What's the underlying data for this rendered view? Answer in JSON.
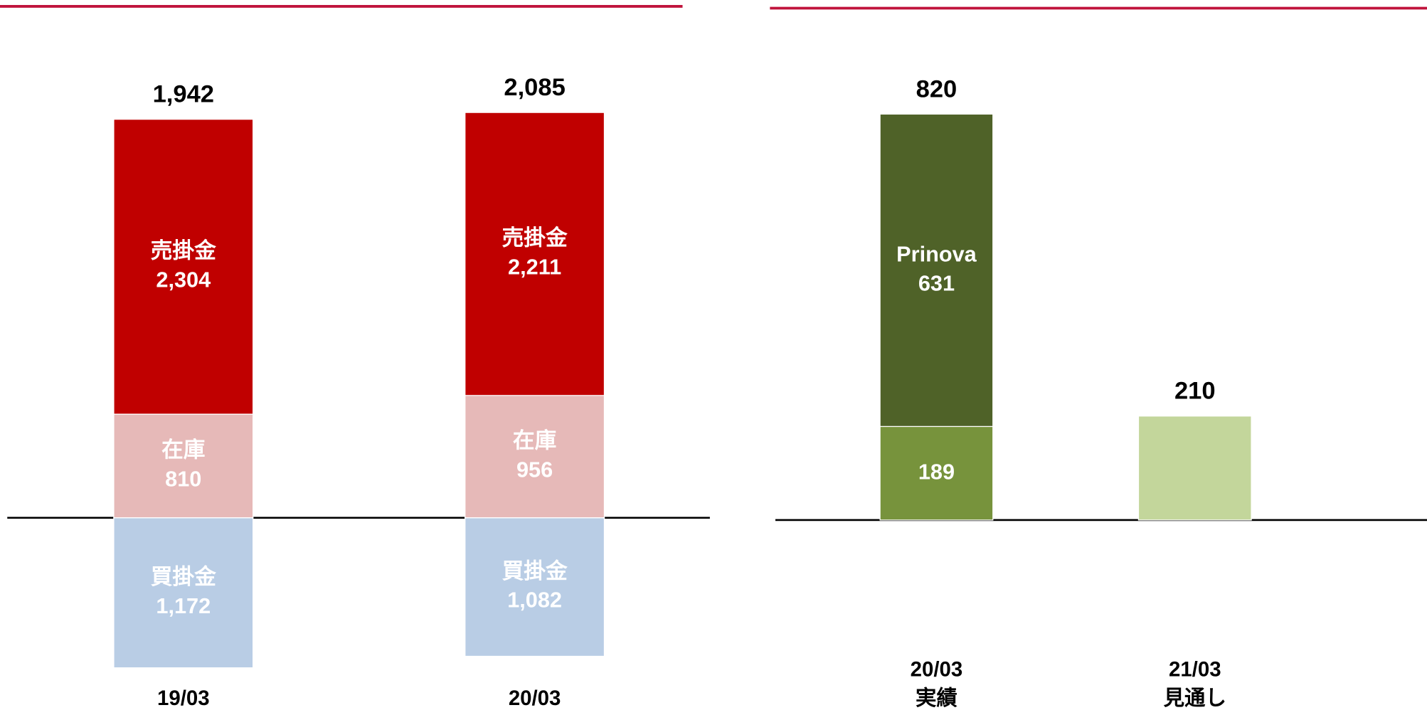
{
  "chart_data": [
    {
      "type": "stacked_bar",
      "categories": [
        [
          "19/03"
        ],
        [
          "20/03"
        ]
      ],
      "series": [
        {
          "name": "在庫",
          "color": "#e6b9b8",
          "values": [
            810,
            956
          ]
        },
        {
          "name": "売掛金",
          "color": "#c00000",
          "values": [
            2304,
            2211
          ],
          "value_labels": [
            "2,304",
            "2,211"
          ]
        },
        {
          "name": "買掛金",
          "color": "#b9cde5",
          "values": [
            -1172,
            -1082
          ],
          "value_labels": [
            "-1,172",
            "-1,082"
          ],
          "printed_labels": [
            "1,172",
            "1,082"
          ]
        }
      ],
      "totals": {
        "values": [
          1942,
          2085
        ],
        "value_labels": [
          "1,942",
          "2,085"
        ]
      },
      "ylim": [
        -1300,
        3400
      ]
    },
    {
      "type": "stacked_bar",
      "categories": [
        [
          "20/03",
          "実績"
        ],
        [
          "21/03",
          "見通し"
        ]
      ],
      "series": [
        {
          "colors": [
            "#77933c",
            "#c3d69b"
          ],
          "values": [
            189,
            210
          ]
        },
        {
          "name": "Prinova",
          "color": "#4f6228",
          "values": [
            631,
            null
          ]
        }
      ],
      "totals": {
        "values": [
          820,
          210
        ]
      },
      "ylim": [
        -350,
        900
      ]
    }
  ]
}
